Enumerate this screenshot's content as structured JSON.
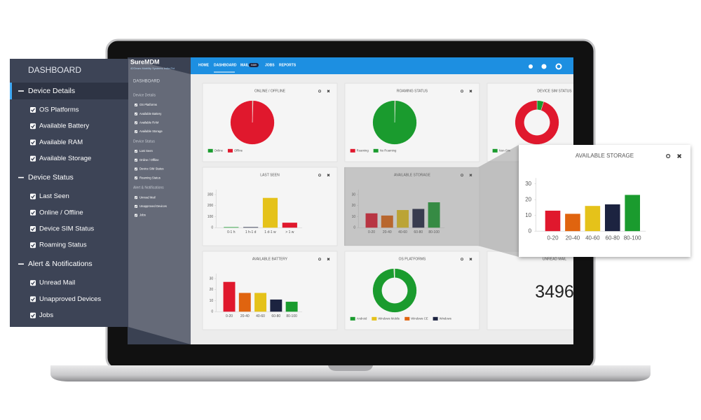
{
  "sidebar": {
    "title": "DASHBOARD",
    "groups": [
      {
        "name": "Device Details",
        "items": [
          "OS Platforms",
          "Available Battery",
          "Available RAM",
          "Available Storage"
        ]
      },
      {
        "name": "Device Status",
        "items": [
          "Last Seen",
          "Online / Offline",
          "Device SIM Status",
          "Roaming Status"
        ]
      },
      {
        "name": "Alert & Notifications",
        "items": [
          "Unread Mail",
          "Unapproved Devices",
          "Jobs"
        ]
      }
    ]
  },
  "app": {
    "brand": "SureMDM",
    "tagline": "42Gears Mobility Systems India Pvt",
    "nav": [
      "HOME",
      "DASHBOARD",
      "MAIL",
      "JOBS",
      "REPORTS"
    ],
    "mail_badge": "0469"
  },
  "widgets": [
    {
      "title": "ONLINE / OFFLINE",
      "chart": {
        "type": "pie",
        "categories": [
          "Online",
          "Offline"
        ],
        "values": [
          0.5,
          99.5
        ],
        "colors": [
          "#1a9b2e",
          "#e0182d"
        ]
      }
    },
    {
      "title": "ROAMING STATUS",
      "chart": {
        "type": "pie",
        "categories": [
          "Roaming",
          "No Roaming"
        ],
        "values": [
          0.5,
          99.5
        ],
        "colors": [
          "#e0182d",
          "#1a9b2e"
        ]
      }
    },
    {
      "title": "DEVICE SIM STATUS",
      "chart": {
        "type": "donut",
        "categories": [
          "Non-Sim",
          null
        ],
        "values": [
          5,
          95
        ],
        "colors": [
          "#1a9b2e",
          "#e0182d"
        ]
      }
    },
    {
      "title": "LAST SEEN",
      "chart": {
        "type": "bar",
        "categories": [
          "0-1 h",
          "1 h-1 d",
          "1 d-1 w",
          "> 1 w"
        ],
        "values": [
          5,
          5,
          270,
          45
        ],
        "colors": [
          "#1a9b2e",
          "#1c2340",
          "#e5c21a",
          "#e0182d"
        ],
        "ylim": [
          0,
          320
        ],
        "yticks": [
          0,
          100,
          200,
          300
        ]
      }
    },
    {
      "title": "AVAILABLE STORAGE",
      "chart": {
        "type": "bar",
        "categories": [
          "0-20",
          "20-40",
          "40-60",
          "60-80",
          "80-100"
        ],
        "values": [
          13,
          11,
          16,
          17,
          23
        ],
        "colors": [
          "#e0182d",
          "#e0640f",
          "#e5c21a",
          "#1c2340",
          "#1a9b2e"
        ],
        "ylim": [
          0,
          32
        ],
        "yticks": [
          0,
          10,
          20,
          30
        ]
      }
    },
    {
      "title": "AVAILABLE BATTERY",
      "chart": {
        "type": "bar",
        "categories": [
          "0-20",
          "20-40",
          "40-60",
          "60-80",
          "80-100"
        ],
        "values": [
          27,
          17,
          17,
          11,
          9
        ],
        "colors": [
          "#e0182d",
          "#e0640f",
          "#e5c21a",
          "#1c2340",
          "#1a9b2e"
        ],
        "ylim": [
          0,
          32
        ],
        "yticks": [
          0,
          10,
          20,
          30
        ]
      }
    },
    {
      "title": "OS PLATFORMS",
      "chart": {
        "type": "donut",
        "categories": [
          "Android",
          "Windows Mobile",
          "Windows CE",
          "Windows"
        ],
        "values": [
          99.4,
          0.2,
          0.2,
          0.2
        ],
        "colors": [
          "#1a9b2e",
          "#e5c21a",
          "#e0640f",
          "#1c2340"
        ]
      }
    },
    {
      "title": "UNREAD MAIL",
      "chart": {
        "type": "number",
        "value": 3496
      }
    }
  ]
}
